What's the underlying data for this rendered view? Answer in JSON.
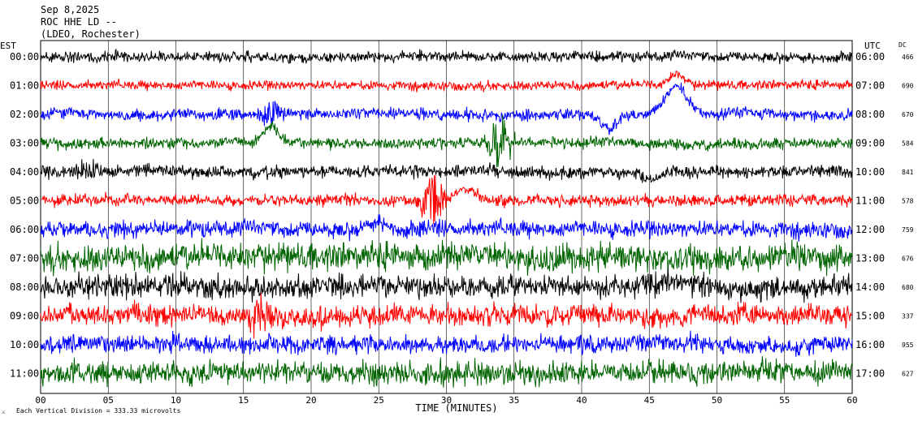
{
  "header": {
    "date": "Sep 8,2025",
    "station": "ROC HHE LD --",
    "network": "(LDEO, Rochester)"
  },
  "labels": {
    "left_zone": "EST",
    "right_zone": "UTC",
    "dc_header": "DC",
    "xlabel": "TIME (MINUTES)",
    "scale_note": "Each Vertical Division =  333.33 microvolts",
    "corner_mark": "⚔"
  },
  "chart_data": {
    "type": "line",
    "title": "",
    "xlabel": "TIME (MINUTES)",
    "ylabel": "",
    "xlim": [
      0,
      60
    ],
    "x_ticks": [
      "00",
      "05",
      "10",
      "15",
      "20",
      "25",
      "30",
      "35",
      "40",
      "45",
      "50",
      "55",
      "60"
    ],
    "x_gridlines_every_minutes": 5,
    "grid": true,
    "series": [
      {
        "est": "00:00",
        "utc": "06:00",
        "dc": "466",
        "color": "#000000",
        "amplitude": 1.0,
        "events": []
      },
      {
        "est": "01:00",
        "utc": "07:00",
        "dc": "690",
        "color": "#ff0000",
        "amplitude": 0.9,
        "events": [
          {
            "minute": 47,
            "shape": "spike",
            "size": 1.0
          }
        ]
      },
      {
        "est": "02:00",
        "utc": "08:00",
        "dc": "670",
        "color": "#0000ff",
        "amplitude": 1.1,
        "events": [
          {
            "minute": 17,
            "shape": "burst",
            "size": 1.2
          },
          {
            "minute": 42,
            "shape": "dip",
            "size": 1.5
          },
          {
            "minute": 47,
            "shape": "hump",
            "size": 2.4
          }
        ]
      },
      {
        "est": "03:00",
        "utc": "09:00",
        "dc": "584",
        "color": "#006400",
        "amplitude": 1.1,
        "events": [
          {
            "minute": 17,
            "shape": "spike",
            "size": 1.4
          },
          {
            "minute": 34,
            "shape": "burst",
            "size": 2.0
          }
        ]
      },
      {
        "est": "04:00",
        "utc": "10:00",
        "dc": "841",
        "color": "#000000",
        "amplitude": 1.2,
        "events": [
          {
            "minute": 3.5,
            "shape": "burst",
            "size": 1.0
          },
          {
            "minute": 45,
            "shape": "dip",
            "size": 0.8
          }
        ]
      },
      {
        "est": "05:00",
        "utc": "11:00",
        "dc": "578",
        "color": "#ff0000",
        "amplitude": 1.1,
        "events": [
          {
            "minute": 29,
            "shape": "burst",
            "size": 2.0
          },
          {
            "minute": 31.5,
            "shape": "hump",
            "size": 0.9
          }
        ]
      },
      {
        "est": "06:00",
        "utc": "12:00",
        "dc": "759",
        "color": "#0000ff",
        "amplitude": 1.6,
        "events": [
          {
            "minute": 25,
            "shape": "hump",
            "size": 0.8
          }
        ]
      },
      {
        "est": "07:00",
        "utc": "13:00",
        "dc": "676",
        "color": "#006400",
        "amplitude": 2.6,
        "events": []
      },
      {
        "est": "08:00",
        "utc": "14:00",
        "dc": "680",
        "color": "#000000",
        "amplitude": 2.2,
        "events": []
      },
      {
        "est": "09:00",
        "utc": "15:00",
        "dc": "337",
        "color": "#ff0000",
        "amplitude": 2.0,
        "events": [
          {
            "minute": 16,
            "shape": "burst",
            "size": 1.6
          }
        ]
      },
      {
        "est": "10:00",
        "utc": "16:00",
        "dc": "955",
        "color": "#0000ff",
        "amplitude": 1.7,
        "events": []
      },
      {
        "est": "11:00",
        "utc": "17:00",
        "dc": "627",
        "color": "#006400",
        "amplitude": 2.2,
        "events": []
      }
    ]
  }
}
